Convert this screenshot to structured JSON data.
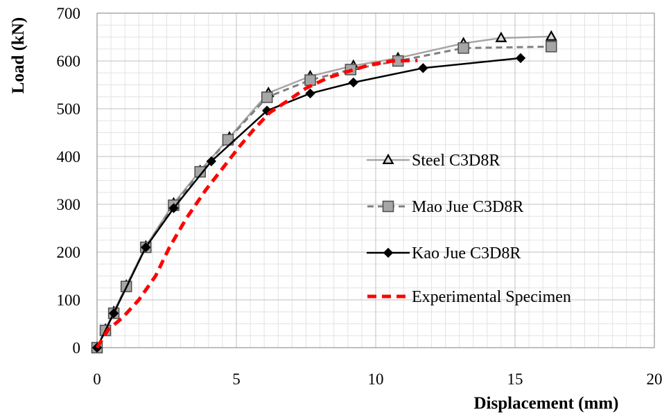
{
  "chart_data": {
    "type": "line",
    "title": "",
    "xlabel": "Displacement (mm)",
    "ylabel": "Load (kN)",
    "xlim": [
      0,
      20
    ],
    "ylim": [
      0,
      700
    ],
    "xticks": [
      0,
      5,
      10,
      15,
      20
    ],
    "yticks": [
      0,
      100,
      200,
      300,
      400,
      500,
      600,
      700
    ],
    "x_minor_step": 0.5,
    "y_minor_step": 25,
    "grid": true,
    "legend_position": "center-right",
    "series": [
      {
        "name": "Steel C3D8R",
        "color": "#a6a6a6",
        "dash": "solid",
        "marker": "triangle",
        "marker_color": "#d9d9d9",
        "points": [
          [
            0,
            0
          ],
          [
            0.3,
            38
          ],
          [
            0.6,
            75
          ],
          [
            1.05,
            130
          ],
          [
            1.75,
            212
          ],
          [
            2.75,
            302
          ],
          [
            3.7,
            370
          ],
          [
            4.75,
            440
          ],
          [
            6.15,
            533
          ],
          [
            7.65,
            568
          ],
          [
            9.2,
            590
          ],
          [
            10.8,
            606
          ],
          [
            13.15,
            637
          ],
          [
            14.5,
            648
          ],
          [
            16.3,
            651
          ]
        ]
      },
      {
        "name": "Mao Jue C3D8R",
        "color": "#808080",
        "dash": "dashed",
        "marker": "square",
        "marker_color": "#a6a6a6",
        "points": [
          [
            0,
            0
          ],
          [
            0.3,
            36
          ],
          [
            0.6,
            72
          ],
          [
            1.05,
            128
          ],
          [
            1.75,
            210
          ],
          [
            2.75,
            298
          ],
          [
            3.7,
            368
          ],
          [
            4.7,
            435
          ],
          [
            6.1,
            524
          ],
          [
            7.65,
            560
          ],
          [
            9.1,
            582
          ],
          [
            10.8,
            600
          ],
          [
            13.15,
            627
          ],
          [
            16.3,
            630
          ]
        ]
      },
      {
        "name": "Kao Jue C3D8R",
        "color": "#000000",
        "dash": "solid",
        "marker": "diamond",
        "marker_color": "#000000",
        "points": [
          [
            0,
            0
          ],
          [
            0.6,
            72
          ],
          [
            1.75,
            210
          ],
          [
            2.75,
            292
          ],
          [
            4.1,
            390
          ],
          [
            6.1,
            496
          ],
          [
            7.65,
            532
          ],
          [
            9.2,
            555
          ],
          [
            11.7,
            585
          ],
          [
            15.2,
            606
          ]
        ]
      },
      {
        "name": "Experimental Specimen",
        "color": "#ff0000",
        "dash": "dashed-heavy",
        "marker": "none",
        "marker_color": "#ff0000",
        "points": [
          [
            0,
            0
          ],
          [
            0.4,
            38
          ],
          [
            0.9,
            62
          ],
          [
            1.5,
            100
          ],
          [
            2.1,
            150
          ],
          [
            2.6,
            210
          ],
          [
            3.2,
            270
          ],
          [
            3.9,
            330
          ],
          [
            4.5,
            375
          ],
          [
            5.1,
            420
          ],
          [
            5.6,
            455
          ],
          [
            6.2,
            492
          ],
          [
            6.8,
            515
          ],
          [
            7.5,
            543
          ],
          [
            8.3,
            565
          ],
          [
            9.0,
            578
          ],
          [
            9.8,
            592
          ],
          [
            10.6,
            600
          ],
          [
            11.5,
            601
          ]
        ]
      }
    ]
  }
}
